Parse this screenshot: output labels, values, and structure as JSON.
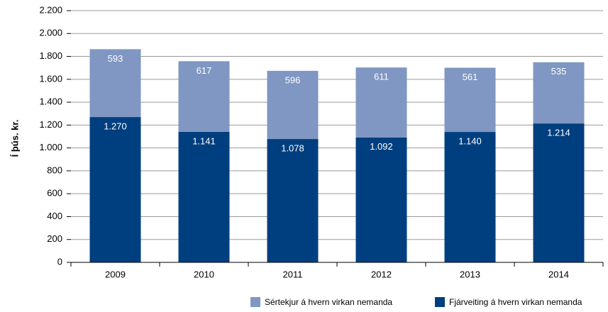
{
  "chart_data": {
    "type": "bar",
    "stacked": true,
    "y_label": "Í þús. kr.",
    "categories": [
      "2009",
      "2010",
      "2011",
      "2012",
      "2013",
      "2014"
    ],
    "series": [
      {
        "name": "Fjárveiting á hvern virkan nemanda",
        "color": "#003f7f",
        "values": [
          1270,
          1141,
          1078,
          1092,
          1140,
          1214
        ],
        "value_labels": [
          "1.270",
          "1.141",
          "1.078",
          "1.092",
          "1.140",
          "1.214"
        ]
      },
      {
        "name": "Sértekjur á hvern virkan nemanda",
        "color": "#7f97c2",
        "values": [
          593,
          617,
          596,
          611,
          561,
          535
        ]
      }
    ],
    "ylim": [
      0,
      2200
    ],
    "yticks": [
      0,
      200,
      400,
      600,
      800,
      {
        "value": 1000,
        "label": "1.000"
      },
      {
        "value": 1200,
        "label": "1.200"
      },
      {
        "value": 1400,
        "label": "1.400"
      },
      {
        "value": 1600,
        "label": "1.600"
      },
      {
        "value": 1800,
        "label": "1.800"
      },
      {
        "value": 2000,
        "label": "2.000"
      },
      {
        "value": 2200,
        "label": "2.200"
      }
    ],
    "grid": true
  }
}
